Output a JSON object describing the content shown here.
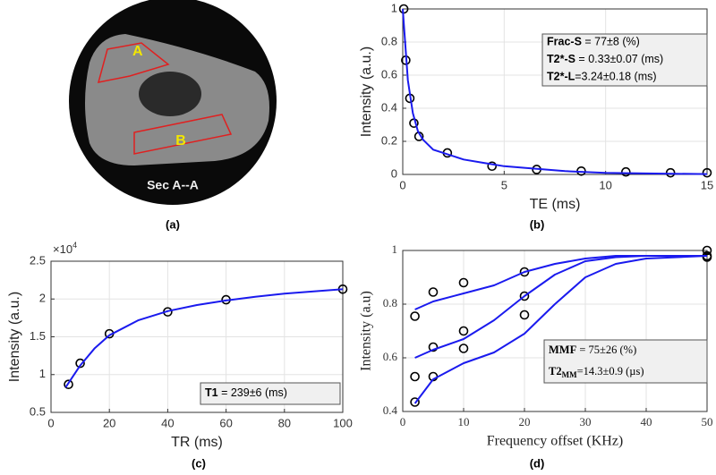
{
  "image": {
    "labels": [
      "A",
      "B"
    ],
    "caption": "Sec A--A",
    "panel_label": "(a)"
  },
  "chart_data": [
    {
      "type": "scatter",
      "panel_label": "(b)",
      "x_label": "TE (ms)",
      "y_label": "Intensity (a.u.)",
      "xlim": [
        0,
        15
      ],
      "xticks": [
        0,
        5,
        10,
        15
      ],
      "ylim": [
        0,
        1
      ],
      "yticks": [
        0,
        0.2,
        0.4,
        0.6,
        0.8,
        1
      ],
      "grid": true,
      "series": [
        {
          "mode": "markers",
          "color": "#000000",
          "x": [
            0.05,
            0.15,
            0.35,
            0.55,
            0.8,
            2.2,
            4.4,
            6.6,
            8.8,
            11,
            13.2,
            15
          ],
          "values": [
            1.0,
            0.69,
            0.46,
            0.31,
            0.23,
            0.13,
            0.05,
            0.03,
            0.02,
            0.015,
            0.01,
            0.01
          ]
        },
        {
          "mode": "line",
          "color": "#1a1aee",
          "x": [
            0,
            0.25,
            0.5,
            0.75,
            1,
            1.5,
            2,
            3,
            4,
            5,
            6,
            8,
            10,
            12,
            15
          ],
          "values": [
            1.0,
            0.57,
            0.37,
            0.26,
            0.21,
            0.15,
            0.13,
            0.09,
            0.07,
            0.05,
            0.04,
            0.02,
            0.01,
            0.006,
            0.002
          ]
        }
      ],
      "annotations": [
        {
          "bold": "Frac-S",
          "text": " = 77±8 (%)"
        },
        {
          "bold": "T2*-S",
          "text": " = 0.33±0.07 (ms)"
        },
        {
          "bold": "T2*-L",
          "text": "=3.24±0.18 (ms)"
        }
      ]
    },
    {
      "type": "scatter",
      "panel_label": "(c)",
      "x_label": "TR (ms)",
      "y_label": "Intensity (a.u.)",
      "y_multiplier": {
        "base": "×10",
        "exponent": "4"
      },
      "xlim": [
        0,
        100
      ],
      "xticks": [
        0,
        20,
        40,
        60,
        80,
        100
      ],
      "ylim": [
        0.5,
        2.5
      ],
      "yticks": [
        0.5,
        1,
        1.5,
        2,
        2.5
      ],
      "grid": true,
      "series": [
        {
          "mode": "markers",
          "color": "#000000",
          "x": [
            6,
            10,
            20,
            40,
            60,
            100
          ],
          "values": [
            0.87,
            1.15,
            1.54,
            1.83,
            1.99,
            2.13
          ]
        },
        {
          "mode": "line",
          "color": "#1a1aee",
          "x": [
            5,
            10,
            15,
            20,
            30,
            40,
            50,
            60,
            70,
            80,
            90,
            100
          ],
          "values": [
            0.83,
            1.12,
            1.35,
            1.52,
            1.72,
            1.84,
            1.92,
            1.98,
            2.03,
            2.07,
            2.1,
            2.13
          ]
        }
      ],
      "annotations": [
        {
          "bold": "T1",
          "text": " = 239±6 (ms)"
        }
      ]
    },
    {
      "type": "scatter",
      "panel_label": "(d)",
      "font": "serif",
      "x_label": "Frequency offset (KHz)",
      "y_label": "Intensity (a.u)",
      "xlim": [
        0,
        50
      ],
      "xticks": [
        0,
        10,
        20,
        30,
        40,
        50
      ],
      "ylim": [
        0.4,
        1
      ],
      "yticks": [
        0.4,
        0.6,
        0.8,
        1
      ],
      "grid": true,
      "series": [
        {
          "mode": "markers",
          "color": "#000000",
          "x": [
            2,
            5,
            10,
            20,
            50
          ],
          "values": [
            0.755,
            0.845,
            0.88,
            0.92,
            1.0
          ]
        },
        {
          "mode": "markers",
          "color": "#000000",
          "x": [
            2,
            5,
            10,
            20,
            50
          ],
          "values": [
            0.53,
            0.64,
            0.7,
            0.83,
            0.98
          ]
        },
        {
          "mode": "markers",
          "color": "#000000",
          "x": [
            2,
            5,
            10,
            20,
            50
          ],
          "values": [
            0.435,
            0.53,
            0.635,
            0.76,
            0.975
          ]
        },
        {
          "mode": "line",
          "color": "#1a1aee",
          "x": [
            2,
            5,
            10,
            15,
            20,
            25,
            30,
            35,
            40,
            50
          ],
          "values": [
            0.78,
            0.81,
            0.84,
            0.87,
            0.92,
            0.95,
            0.97,
            0.98,
            0.98,
            0.98
          ]
        },
        {
          "mode": "line",
          "color": "#1a1aee",
          "x": [
            2,
            5,
            10,
            15,
            20,
            25,
            30,
            35,
            40,
            50
          ],
          "values": [
            0.6,
            0.63,
            0.67,
            0.74,
            0.83,
            0.91,
            0.96,
            0.975,
            0.98,
            0.98
          ]
        },
        {
          "mode": "line",
          "color": "#1a1aee",
          "x": [
            2,
            5,
            10,
            15,
            20,
            25,
            30,
            35,
            40,
            50
          ],
          "values": [
            0.43,
            0.52,
            0.58,
            0.62,
            0.69,
            0.8,
            0.9,
            0.95,
            0.97,
            0.98
          ]
        }
      ],
      "annotations": [
        {
          "bold": "MMF",
          "text": " = 75±26 (%)"
        },
        {
          "bold": "T2",
          "sub": "MM",
          "text": "=14.3±0.9 (µs)"
        }
      ]
    }
  ]
}
